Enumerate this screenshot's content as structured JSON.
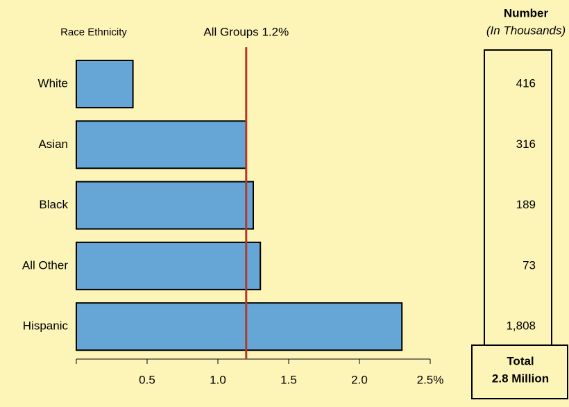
{
  "chart_data": {
    "type": "bar",
    "orientation": "horizontal",
    "category_axis_label": "Race Ethnicity",
    "categories": [
      "White",
      "Asian",
      "Black",
      "All Other",
      "Hispanic"
    ],
    "values": [
      0.4,
      1.2,
      1.25,
      1.3,
      2.3
    ],
    "color": "#66a6d6",
    "xlim": [
      0,
      2.5
    ],
    "xticks": [
      0.5,
      {
        "value": 1.0,
        "label": "1.0"
      },
      1.5,
      {
        "value": 2.0,
        "label": "2.0"
      },
      {
        "value": 2.5,
        "label": "2.5%"
      }
    ],
    "reference_line": {
      "value": 1.2,
      "label": "All Groups 1.2%",
      "color": "#b0392c"
    },
    "numbers": {
      "title": "Number",
      "subtitle": "(In Thousands)",
      "values": [
        416,
        316,
        189,
        73,
        1808
      ],
      "value_labels": [
        "416",
        "316",
        "189",
        "73",
        "1,808"
      ],
      "total_title": "Total",
      "total_label": "2.8 Million"
    }
  }
}
